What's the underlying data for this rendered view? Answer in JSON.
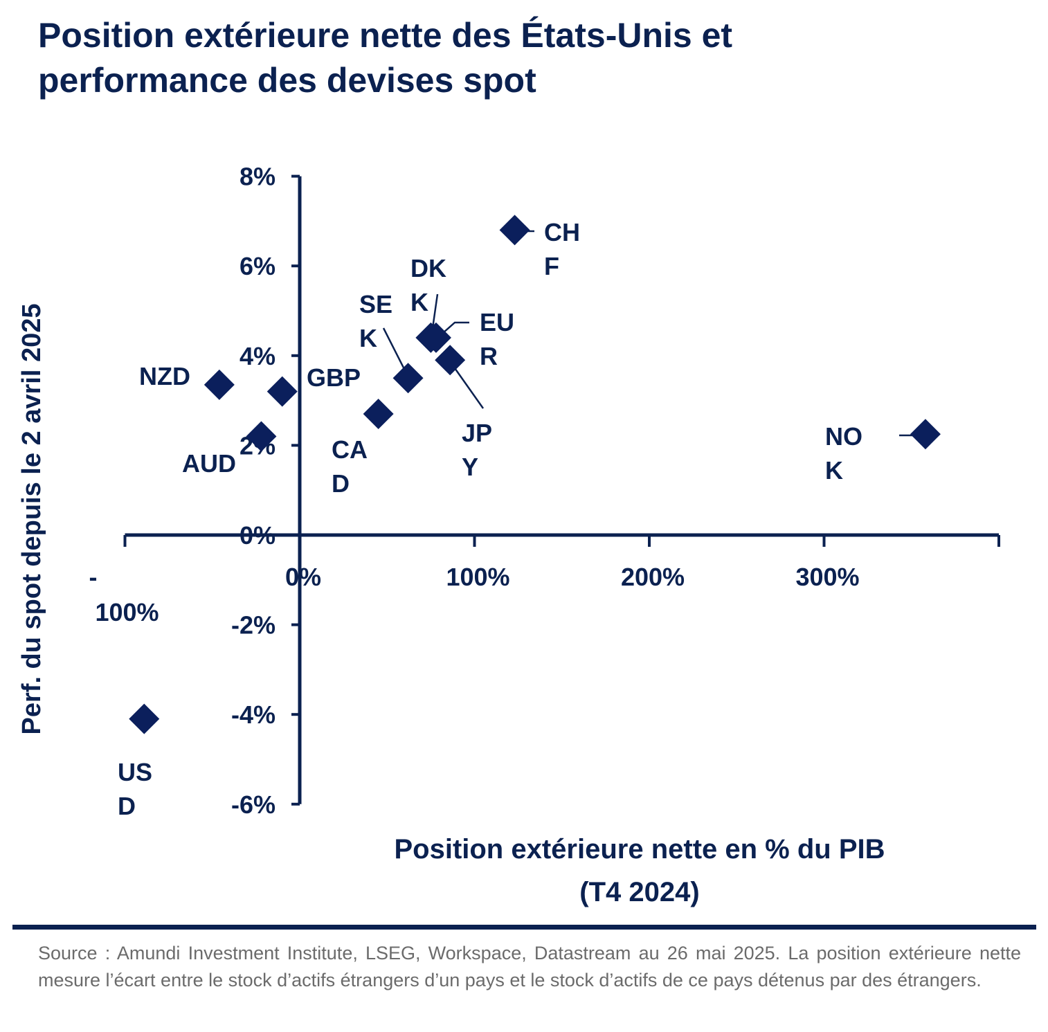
{
  "title_lines": [
    "Position extérieure nette des États-Unis et",
    "performance des devises spot"
  ],
  "source": "Source : Amundi Investment Institute, LSEG, Workspace, Datastream au 26 mai 2025. La position extérieure nette mesure l’écart entre le stock d’actifs étrangers d’un pays et le stock d’actifs de ce pays détenus par des étrangers.",
  "colors": {
    "marker": "#0b1f5c",
    "text": "#0b2150",
    "source": "#6b6b6b"
  },
  "chart_data": {
    "type": "scatter",
    "title": "Position extérieure nette des États-Unis et performance des devises spot",
    "xlabel_lines": [
      "Position extérieure nette en % du PIB",
      "(T4 2024)"
    ],
    "ylabel": "Perf. du spot depuis le 2 avril 2025",
    "xlim": [
      -100,
      400
    ],
    "ylim": [
      -6,
      8
    ],
    "x_ticks": [
      "-100%",
      "0%",
      "100%",
      "200%",
      "300%"
    ],
    "x_tick_values": [
      -100,
      0,
      100,
      200,
      300
    ],
    "y_ticks": [
      "8%",
      "6%",
      "4%",
      "2%",
      "0%",
      "-2%",
      "-4%",
      "-6%"
    ],
    "y_tick_values": [
      8,
      6,
      4,
      2,
      0,
      -2,
      -4,
      -6
    ],
    "grid": false,
    "marker": "diamond",
    "points": [
      {
        "label": "CHF",
        "x": 123,
        "y": 6.8
      },
      {
        "label": "DKK",
        "x": 75,
        "y": 4.4
      },
      {
        "label": "EUR",
        "x": 78,
        "y": 4.4
      },
      {
        "label": "SEK",
        "x": 62,
        "y": 3.5
      },
      {
        "label": "JPY",
        "x": 86,
        "y": 3.9
      },
      {
        "label": "CAD",
        "x": 45,
        "y": 2.7
      },
      {
        "label": "GBP",
        "x": -10,
        "y": 3.2
      },
      {
        "label": "NZD",
        "x": -46,
        "y": 3.35
      },
      {
        "label": "AUD",
        "x": -22,
        "y": 2.2
      },
      {
        "label": "NOK",
        "x": 358,
        "y": 2.25
      },
      {
        "label": "USD",
        "x": -89,
        "y": -4.1
      }
    ]
  }
}
